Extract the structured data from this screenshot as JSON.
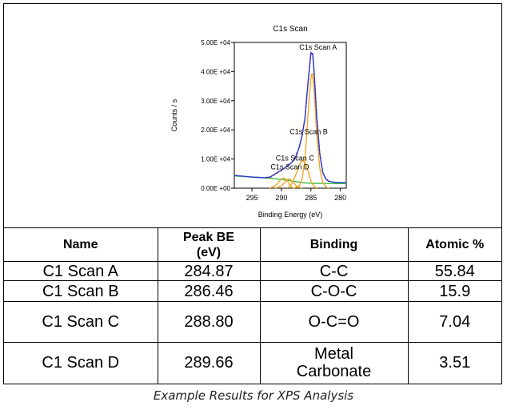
{
  "chart_data": {
    "type": "line",
    "title": "C1s Scan",
    "xlabel": "Binding Energy (eV)",
    "ylabel": "Counts / s",
    "x_reversed": true,
    "xlim": [
      298,
      279
    ],
    "ylim": [
      0,
      50000
    ],
    "xticks": [
      295,
      290,
      285,
      280
    ],
    "xtick_labels": [
      "295",
      "290",
      "285",
      "280"
    ],
    "yticks": [
      0,
      10000,
      20000,
      30000,
      40000,
      50000
    ],
    "ytick_labels": [
      "0.00E +00",
      "1.00E +04",
      "2.00E +04",
      "3.00E +04",
      "4.00E +04",
      "5.00E +04"
    ],
    "series": [
      {
        "role": "envelope",
        "color": "#2a3bcc",
        "x": [
          298,
          297,
          296,
          295,
          294,
          293,
          292,
          291.5,
          291,
          290.5,
          290,
          289.5,
          289,
          288.5,
          288,
          287.5,
          287,
          286.5,
          286,
          285.5,
          285,
          284.7,
          284.5,
          284,
          283.5,
          283,
          282.5,
          282,
          281,
          280,
          279
        ],
        "y": [
          4400,
          4200,
          4000,
          3800,
          3700,
          3600,
          3800,
          4300,
          5000,
          5600,
          6200,
          6900,
          7600,
          8400,
          9300,
          11000,
          14000,
          18000,
          24000,
          36000,
          46500,
          46000,
          41000,
          24000,
          12000,
          5500,
          3200,
          2400,
          2000,
          1900,
          1900
        ]
      },
      {
        "role": "fit-sum",
        "color": "#d4204a",
        "x": [
          292,
          291,
          290,
          289,
          288,
          287,
          286.5,
          286,
          285.5,
          285,
          284.7,
          284.5,
          284,
          283.5,
          283,
          282.5,
          282
        ],
        "y": [
          3600,
          4900,
          6100,
          7500,
          9400,
          13800,
          18100,
          24200,
          36200,
          46300,
          46200,
          41200,
          24100,
          12100,
          5600,
          3300,
          2500
        ]
      },
      {
        "role": "component",
        "name": "C1s Scan A",
        "color": "#f2a726",
        "x": [
          288,
          287,
          286.5,
          286,
          285.5,
          285,
          284.8,
          284.5,
          284,
          283.5,
          283,
          282.5,
          282
        ],
        "y": [
          0,
          700,
          3000,
          10000,
          25000,
          38000,
          39500,
          35000,
          18000,
          7000,
          2000,
          500,
          0
        ]
      },
      {
        "role": "component",
        "name": "C1s Scan B",
        "color": "#f2a726",
        "x": [
          289,
          288.5,
          288,
          287.5,
          287,
          286.5,
          286,
          285.5,
          285,
          284.5,
          284
        ],
        "y": [
          0,
          800,
          2500,
          5000,
          8000,
          9500,
          8800,
          6000,
          2500,
          700,
          0
        ]
      },
      {
        "role": "component",
        "name": "C1s Scan C",
        "color": "#f2a726",
        "x": [
          291,
          290,
          289.5,
          289,
          288.8,
          288.5,
          288,
          287.5,
          287,
          286.5
        ],
        "y": [
          0,
          800,
          1800,
          2900,
          3200,
          3000,
          2000,
          900,
          300,
          0
        ]
      },
      {
        "role": "component",
        "name": "C1s Scan D",
        "color": "#f2a726",
        "x": [
          292,
          291,
          290.5,
          290,
          289.66,
          289.3,
          289,
          288.5,
          288
        ],
        "y": [
          0,
          900,
          2000,
          3200,
          3500,
          3200,
          2500,
          900,
          0
        ]
      },
      {
        "role": "background",
        "color": "#3cb83c",
        "x": [
          298,
          294,
          292,
          290,
          288,
          287,
          286,
          285,
          284,
          283,
          282,
          281,
          280,
          279
        ],
        "y": [
          4200,
          3700,
          3400,
          3000,
          2400,
          2100,
          1800,
          1700,
          1650,
          1620,
          1600,
          1600,
          1600,
          1600
        ]
      }
    ],
    "annotations": [
      {
        "text": "C1s Scan A",
        "x": 284.87,
        "y": 47500
      },
      {
        "text": "C1s Scan B",
        "x": 286.46,
        "y": 18500
      },
      {
        "text": "C1s Scan C",
        "x": 288.8,
        "y": 9500
      },
      {
        "text": "C1s Scan D",
        "x": 289.66,
        "y": 6500
      }
    ],
    "legend": "none",
    "grid": false
  },
  "table": {
    "headers": [
      "Name",
      "Peak BE\n(eV)",
      "Binding",
      "Atomic %"
    ],
    "rows": [
      [
        "C1 Scan A",
        "284.87",
        "C-C",
        "55.84"
      ],
      [
        "C1 Scan B",
        "286.46",
        "C-O-C",
        "15.9"
      ],
      [
        "C1 Scan C",
        "288.80",
        "O-C=O",
        "7.04"
      ],
      [
        "C1 Scan D",
        "289.66",
        "Metal\nCarbonate",
        "3.51"
      ]
    ]
  },
  "caption": "Example Results for XPS Analysis"
}
